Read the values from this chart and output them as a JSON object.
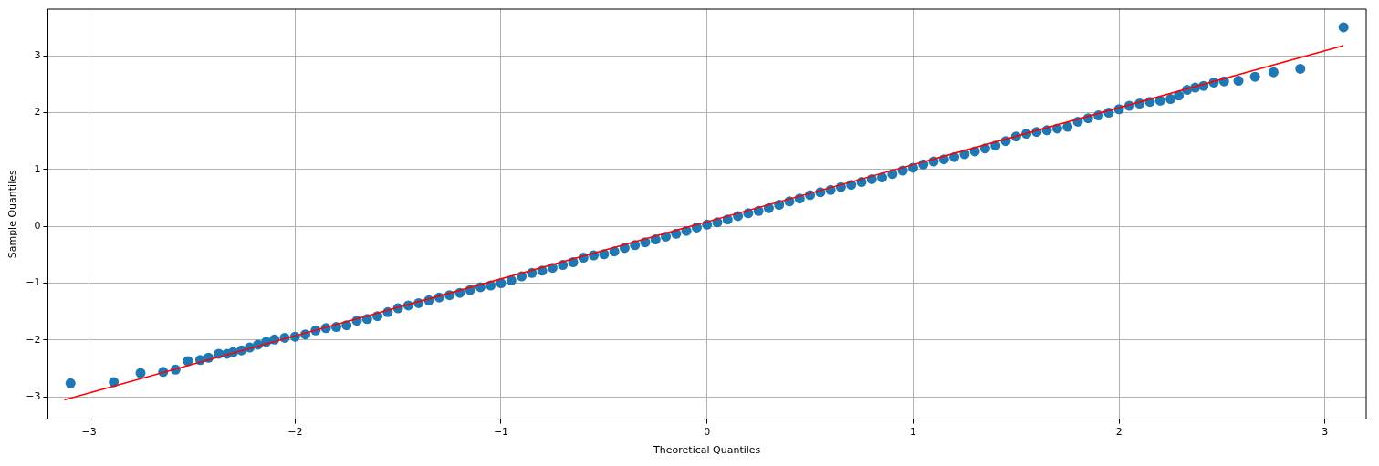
{
  "chart_data": {
    "type": "scatter",
    "xlabel": "Theoretical Quantiles",
    "ylabel": "Sample Quantiles",
    "xlim": [
      -3.2,
      3.2
    ],
    "ylim": [
      -3.39,
      3.82
    ],
    "xticks": [
      -3,
      -2,
      -1,
      0,
      1,
      2,
      3
    ],
    "yticks": [
      -3,
      -2,
      -1,
      0,
      1,
      2,
      3
    ],
    "grid": true,
    "legend": false,
    "marker": "circle",
    "series": [
      {
        "color": "#1f77b4",
        "x": [
          -3.09,
          -2.88,
          -2.75,
          -2.64,
          -2.58,
          -2.52,
          -2.46,
          -2.42,
          -2.37,
          -2.33,
          -2.3,
          -2.26,
          -2.22,
          -2.18,
          -2.14,
          -2.1,
          -2.05,
          -2.0,
          -1.95,
          -1.9,
          -1.85,
          -1.8,
          -1.75,
          -1.7,
          -1.65,
          -1.6,
          -1.55,
          -1.5,
          -1.45,
          -1.4,
          -1.35,
          -1.3,
          -1.25,
          -1.2,
          -1.15,
          -1.1,
          -1.05,
          -1.0,
          -0.95,
          -0.9,
          -0.85,
          -0.8,
          -0.75,
          -0.7,
          -0.65,
          -0.6,
          -0.55,
          -0.5,
          -0.45,
          -0.4,
          -0.35,
          -0.3,
          -0.25,
          -0.2,
          -0.15,
          -0.1,
          -0.05,
          0,
          0.05,
          0.1,
          0.15,
          0.2,
          0.25,
          0.3,
          0.35,
          0.4,
          0.45,
          0.5,
          0.55,
          0.6,
          0.65,
          0.7,
          0.75,
          0.8,
          0.85,
          0.9,
          0.95,
          1.0,
          1.05,
          1.1,
          1.15,
          1.2,
          1.25,
          1.3,
          1.35,
          1.4,
          1.45,
          1.5,
          1.55,
          1.6,
          1.65,
          1.7,
          1.75,
          1.8,
          1.85,
          1.9,
          1.95,
          2.0,
          2.05,
          2.1,
          2.15,
          2.2,
          2.25,
          2.29,
          2.33,
          2.37,
          2.41,
          2.46,
          2.51,
          2.58,
          2.66,
          2.75,
          2.88,
          3.09
        ],
        "values": [
          -2.76,
          -2.74,
          -2.58,
          -2.56,
          -2.52,
          -2.37,
          -2.35,
          -2.31,
          -2.24,
          -2.24,
          -2.21,
          -2.18,
          -2.13,
          -2.08,
          -2.03,
          -1.99,
          -1.96,
          -1.94,
          -1.9,
          -1.83,
          -1.79,
          -1.77,
          -1.74,
          -1.66,
          -1.63,
          -1.58,
          -1.51,
          -1.44,
          -1.39,
          -1.35,
          -1.3,
          -1.25,
          -1.21,
          -1.17,
          -1.12,
          -1.07,
          -1.04,
          -1.0,
          -0.95,
          -0.88,
          -0.82,
          -0.78,
          -0.73,
          -0.68,
          -0.63,
          -0.55,
          -0.51,
          -0.49,
          -0.44,
          -0.38,
          -0.33,
          -0.28,
          -0.23,
          -0.18,
          -0.13,
          -0.08,
          -0.02,
          0.03,
          0.07,
          0.12,
          0.18,
          0.23,
          0.27,
          0.32,
          0.38,
          0.44,
          0.49,
          0.55,
          0.6,
          0.64,
          0.69,
          0.73,
          0.78,
          0.83,
          0.86,
          0.92,
          0.98,
          1.03,
          1.09,
          1.14,
          1.18,
          1.22,
          1.27,
          1.32,
          1.37,
          1.42,
          1.5,
          1.58,
          1.63,
          1.66,
          1.69,
          1.72,
          1.75,
          1.84,
          1.9,
          1.95,
          2.0,
          2.06,
          2.12,
          2.16,
          2.19,
          2.21,
          2.24,
          2.3,
          2.4,
          2.44,
          2.47,
          2.53,
          2.55,
          2.56,
          2.63,
          2.71,
          2.77,
          3.5
        ]
      },
      {
        "type": "line",
        "color": "#ff0000",
        "marker": "none",
        "x": [
          -3.12,
          3.09
        ],
        "values": [
          -3.05,
          3.18
        ]
      }
    ]
  }
}
